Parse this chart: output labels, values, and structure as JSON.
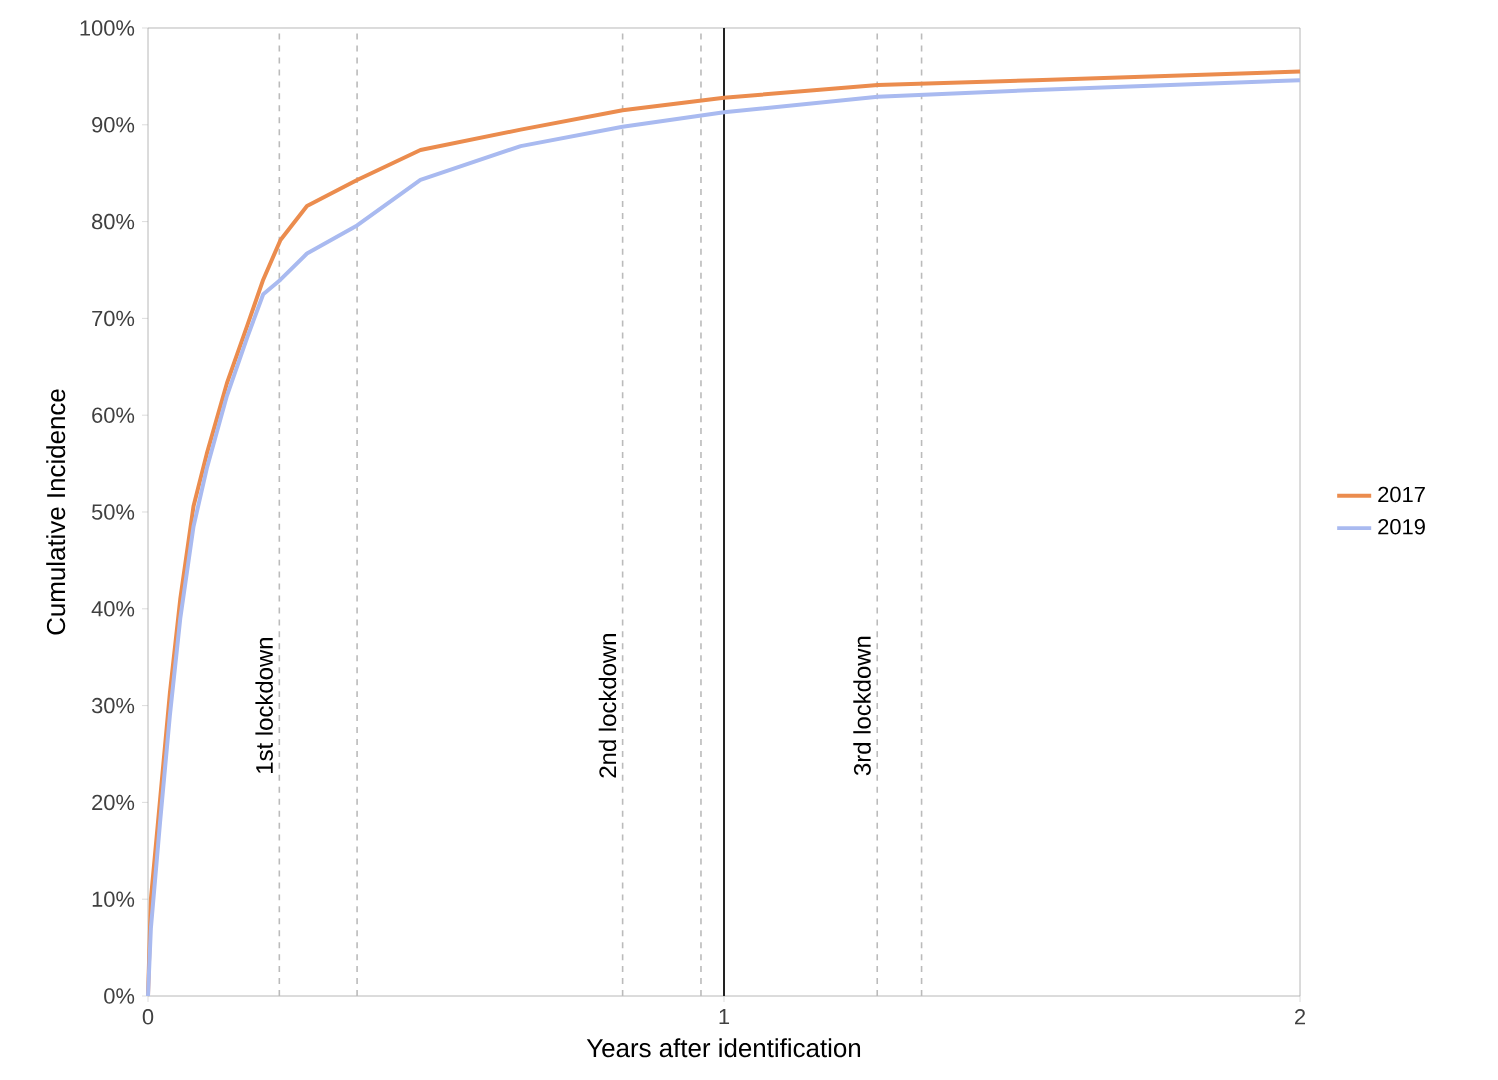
{
  "chart_data": {
    "type": "line",
    "xlabel": "Years after identification",
    "ylabel": "Cumulative Incidence",
    "xlim": [
      0,
      2
    ],
    "ylim": [
      0,
      100
    ],
    "xticks": [
      0,
      1,
      2
    ],
    "yticks": [
      {
        "value": 0,
        "label": "0%"
      },
      {
        "value": 10,
        "label": "10%"
      },
      {
        "value": 20,
        "label": "20%"
      },
      {
        "value": 30,
        "label": "30%"
      },
      {
        "value": 40,
        "label": "40%"
      },
      {
        "value": 50,
        "label": "50%"
      },
      {
        "value": 60,
        "label": "60%"
      },
      {
        "value": 70,
        "label": "70%"
      },
      {
        "value": 80,
        "label": "80%"
      },
      {
        "value": 90,
        "label": "90%"
      },
      {
        "value": 100,
        "label": "100%"
      }
    ],
    "legend": "right",
    "grid": false,
    "line_style": "solid",
    "series": [
      {
        "name": "2017",
        "color": "#eb8c4e",
        "x": [
          0,
          0.005,
          0.021,
          0.038,
          0.056,
          0.079,
          0.102,
          0.137,
          0.172,
          0.2,
          0.23,
          0.276,
          0.363,
          0.473,
          0.647,
          0.824,
          1.0,
          1.267,
          1.54,
          2.0
        ],
        "values": [
          0,
          10,
          20.3,
          31.3,
          41,
          50.6,
          56,
          63.3,
          69.2,
          74,
          78.1,
          81.6,
          84.3,
          87.4,
          89.5,
          91.5,
          92.8,
          94.1,
          94.6,
          95.5
        ]
      },
      {
        "name": "2019",
        "color": "#a9baf0",
        "x": [
          0,
          0.005,
          0.021,
          0.038,
          0.056,
          0.079,
          0.102,
          0.137,
          0.172,
          0.2,
          0.23,
          0.276,
          0.363,
          0.473,
          0.647,
          0.824,
          1.0,
          1.267,
          1.54,
          2.0
        ],
        "values": [
          0,
          7,
          18,
          29,
          39,
          48.5,
          54.5,
          62,
          68,
          72.5,
          74,
          76.7,
          79.6,
          84.3,
          87.8,
          89.8,
          91.3,
          92.9,
          93.6,
          94.6
        ]
      }
    ],
    "ref_lines": [
      {
        "axis": "x",
        "value": 1,
        "color": "#222222",
        "line_style": "solid"
      },
      {
        "axis": "x",
        "value": 0.228,
        "label": "1st lockdown",
        "color": "#bbbbbb",
        "line_style": "dashed"
      },
      {
        "axis": "x",
        "value": 0.363,
        "color": "#bbbbbb",
        "line_style": "dashed"
      },
      {
        "axis": "x",
        "value": 0.824,
        "label": "2nd lockdown",
        "color": "#bbbbbb",
        "line_style": "dashed"
      },
      {
        "axis": "x",
        "value": 0.96,
        "color": "#bbbbbb",
        "line_style": "dashed"
      },
      {
        "axis": "x",
        "value": 1.266,
        "label": "3rd lockdown",
        "color": "#bbbbbb",
        "line_style": "dashed"
      },
      {
        "axis": "x",
        "value": 1.343,
        "color": "#bbbbbb",
        "line_style": "dashed"
      }
    ]
  }
}
